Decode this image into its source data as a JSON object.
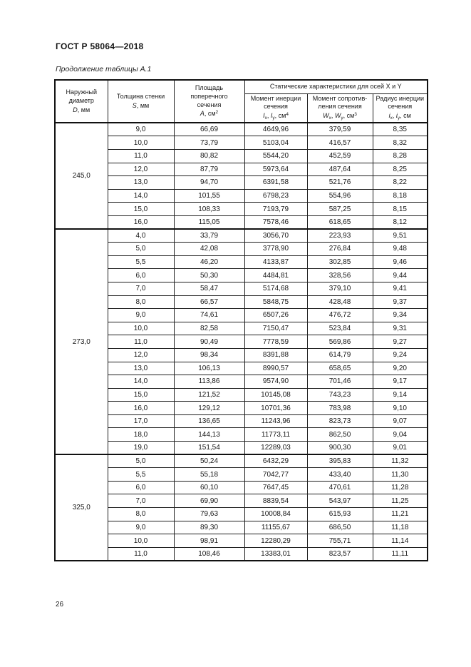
{
  "page": {
    "doc_code": "ГОСТ Р 58064—2018",
    "table_caption": "Продолжение таблицы А.1",
    "page_number": "26"
  },
  "table": {
    "header": {
      "group_title": "Статические характеристики для осей X и Y",
      "diameter": {
        "l1": "Наружный",
        "l2": "диаметр",
        "sym": "D",
        "unit": ", мм"
      },
      "thickness": {
        "l1": "Толщина стенки",
        "sym": "S",
        "unit": ", мм"
      },
      "area": {
        "l1": "Площадь",
        "l2": "поперечного",
        "l3": "сечения",
        "sym": "А",
        "unit": ", см",
        "exp": "2"
      },
      "inertia": {
        "l1": "Момент инерции",
        "l2": "сечения",
        "i1": "I",
        "s1": "x",
        "c": ", ",
        "i2": "I",
        "s2": "y",
        "unit": ", см",
        "exp": "4"
      },
      "resistance": {
        "l1": "Момент сопротив-",
        "l2": "ления сечения",
        "i1": "W",
        "s1": "x",
        "c": ", ",
        "i2": "W",
        "s2": "y",
        "unit": ", см",
        "exp": "3"
      },
      "radius": {
        "l1": "Радиус инерции",
        "l2": "сечения",
        "i1": "i",
        "s1": "x",
        "c": ", ",
        "i2": "i",
        "s2": "y",
        "unit": ", см"
      }
    },
    "sections": [
      {
        "diameter": "245,0",
        "rows": [
          [
            "9,0",
            "66,69",
            "4649,96",
            "379,59",
            "8,35"
          ],
          [
            "10,0",
            "73,79",
            "5103,04",
            "416,57",
            "8,32"
          ],
          [
            "11,0",
            "80,82",
            "5544,20",
            "452,59",
            "8,28"
          ],
          [
            "12,0",
            "87,79",
            "5973,64",
            "487,64",
            "8,25"
          ],
          [
            "13,0",
            "94,70",
            "6391,58",
            "521,76",
            "8,22"
          ],
          [
            "14,0",
            "101,55",
            "6798,23",
            "554,96",
            "8,18"
          ],
          [
            "15,0",
            "108,33",
            "7193,79",
            "587,25",
            "8,15"
          ],
          [
            "16,0",
            "115,05",
            "7578,46",
            "618,65",
            "8,12"
          ]
        ]
      },
      {
        "diameter": "273,0",
        "rows": [
          [
            "4,0",
            "33,79",
            "3056,70",
            "223,93",
            "9,51"
          ],
          [
            "5,0",
            "42,08",
            "3778,90",
            "276,84",
            "9,48"
          ],
          [
            "5,5",
            "46,20",
            "4133,87",
            "302,85",
            "9,46"
          ],
          [
            "6,0",
            "50,30",
            "4484,81",
            "328,56",
            "9,44"
          ],
          [
            "7,0",
            "58,47",
            "5174,68",
            "379,10",
            "9,41"
          ],
          [
            "8,0",
            "66,57",
            "5848,75",
            "428,48",
            "9,37"
          ],
          [
            "9,0",
            "74,61",
            "6507,26",
            "476,72",
            "9,34"
          ],
          [
            "10,0",
            "82,58",
            "7150,47",
            "523,84",
            "9,31"
          ],
          [
            "11,0",
            "90,49",
            "7778,59",
            "569,86",
            "9,27"
          ],
          [
            "12,0",
            "98,34",
            "8391,88",
            "614,79",
            "9,24"
          ],
          [
            "13,0",
            "106,13",
            "8990,57",
            "658,65",
            "9,20"
          ],
          [
            "14,0",
            "113,86",
            "9574,90",
            "701,46",
            "9,17"
          ],
          [
            "15,0",
            "121,52",
            "10145,08",
            "743,23",
            "9,14"
          ],
          [
            "16,0",
            "129,12",
            "10701,36",
            "783,98",
            "9,10"
          ],
          [
            "17,0",
            "136,65",
            "11243,96",
            "823,73",
            "9,07"
          ],
          [
            "18,0",
            "144,13",
            "11773,11",
            "862,50",
            "9,04"
          ],
          [
            "19,0",
            "151,54",
            "12289,03",
            "900,30",
            "9,01"
          ]
        ]
      },
      {
        "diameter": "325,0",
        "rows": [
          [
            "5,0",
            "50,24",
            "6432,29",
            "395,83",
            "11,32"
          ],
          [
            "5,5",
            "55,18",
            "7042,77",
            "433,40",
            "11,30"
          ],
          [
            "6,0",
            "60,10",
            "7647,45",
            "470,61",
            "11,28"
          ],
          [
            "7,0",
            "69,90",
            "8839,54",
            "543,97",
            "11,25"
          ],
          [
            "8,0",
            "79,63",
            "10008,84",
            "615,93",
            "11,21"
          ],
          [
            "9,0",
            "89,30",
            "11155,67",
            "686,50",
            "11,18"
          ],
          [
            "10,0",
            "98,91",
            "12280,29",
            "755,71",
            "11,14"
          ],
          [
            "11,0",
            "108,46",
            "13383,01",
            "823,57",
            "11,11"
          ]
        ]
      }
    ]
  }
}
